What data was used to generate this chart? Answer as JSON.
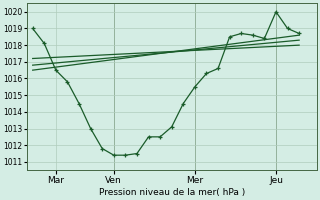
{
  "bg_color": "#d4ede4",
  "grid_color": "#b0ccbc",
  "line_color": "#1a5c2a",
  "ylim": [
    1010.5,
    1020.5
  ],
  "yticks": [
    1011,
    1012,
    1013,
    1014,
    1015,
    1016,
    1017,
    1018,
    1019,
    1020
  ],
  "xlabel": "Pression niveau de la mer( hPa )",
  "xtick_labels": [
    "Mar",
    "Ven",
    "Mer",
    "Jeu"
  ],
  "xtick_pos": [
    2,
    7,
    14,
    21
  ],
  "xlim": [
    -0.5,
    24.5
  ],
  "main_x": [
    0,
    1,
    2,
    3,
    4,
    5,
    6,
    7,
    8,
    9,
    10,
    11,
    12,
    13,
    14,
    15,
    16,
    17,
    18,
    19,
    20,
    21,
    22,
    23
  ],
  "main_y": [
    1019.0,
    1018.1,
    1016.5,
    1015.8,
    1014.5,
    1013.0,
    1011.8,
    1011.4,
    1011.4,
    1011.5,
    1012.5,
    1012.5,
    1013.1,
    1014.5,
    1015.5,
    1016.3,
    1016.6,
    1018.5,
    1018.7,
    1018.6,
    1018.4,
    1020.0,
    1019.0,
    1018.7
  ],
  "trend1_x": [
    0,
    23
  ],
  "trend1_y": [
    1016.5,
    1018.6
  ],
  "trend2_x": [
    0,
    23
  ],
  "trend2_y": [
    1016.8,
    1018.3
  ],
  "trend3_x": [
    0,
    23
  ],
  "trend3_y": [
    1017.2,
    1018.0
  ],
  "vline1_x": 7,
  "vline2_x": 14,
  "vline3_x": 21
}
